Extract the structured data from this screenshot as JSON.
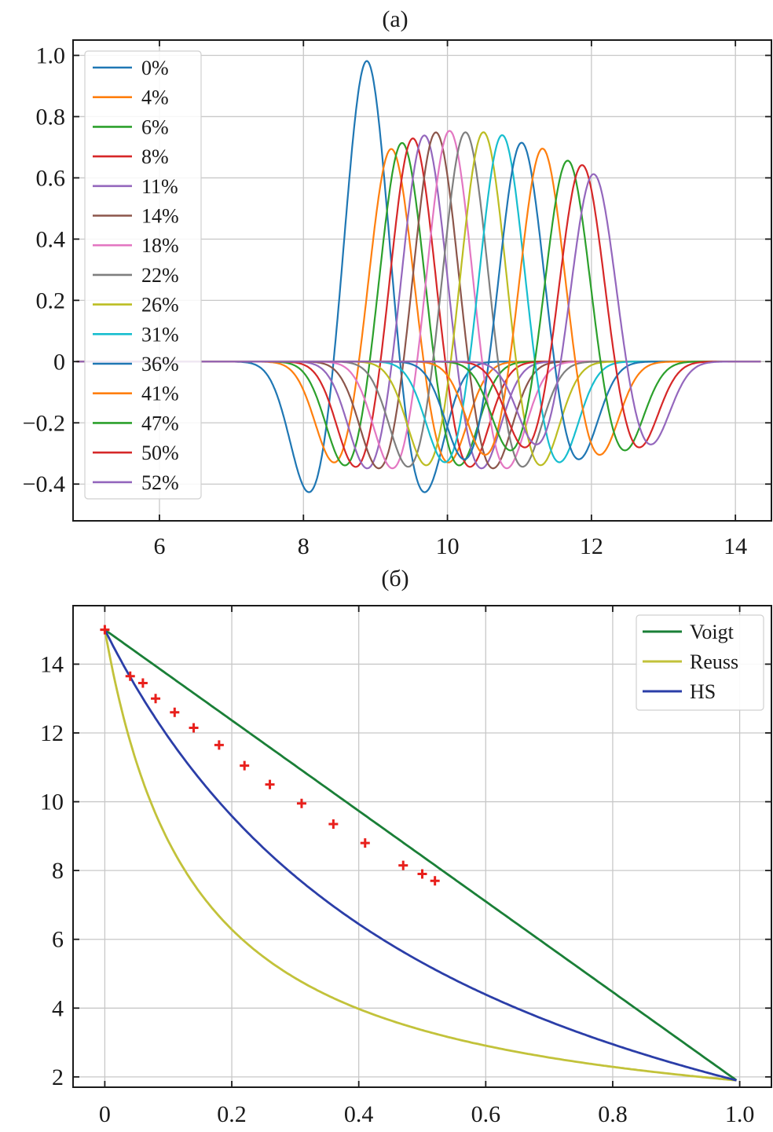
{
  "chart_data": [
    {
      "type": "line",
      "panel_label": "(a)",
      "title": "",
      "xlabel": "",
      "ylabel": "",
      "xlim": [
        4.8,
        14.5
      ],
      "ylim": [
        -0.52,
        1.05
      ],
      "xticks": [
        6,
        8,
        10,
        12,
        14
      ],
      "xtick_labels": [
        "6",
        "8",
        "10",
        "12",
        "14"
      ],
      "yticks": [
        1.0,
        0.8,
        0.6,
        0.4,
        0.2,
        0,
        -0.2,
        -0.4
      ],
      "ytick_labels": [
        "1.0",
        "0.8",
        "0.6",
        "0.4",
        "0.2",
        "0",
        "−0.2",
        "−0.4"
      ],
      "grid": true,
      "legend_position": "upper-left",
      "x_range_of_traces": [
        4.85,
        14.35
      ],
      "series": [
        {
          "name": "0%",
          "color": "#1f77b4",
          "peak_x": 8.88,
          "peak_y": 1.0,
          "trough1_x": 8.1,
          "trough1_y": -0.44,
          "trough2_x": 9.66,
          "trough2_y": -0.44
        },
        {
          "name": "4%",
          "color": "#ff7f0e",
          "peak_x": 9.22,
          "peak_y": 0.71,
          "trough1_x": 8.45,
          "trough1_y": -0.34,
          "trough2_x": 9.99,
          "trough2_y": -0.34
        },
        {
          "name": "6%",
          "color": "#2ca02c",
          "peak_x": 9.37,
          "peak_y": 0.73,
          "trough1_x": 8.6,
          "trough1_y": -0.35,
          "trough2_x": 10.14,
          "trough2_y": -0.35
        },
        {
          "name": "8%",
          "color": "#d62728",
          "peak_x": 9.52,
          "peak_y": 0.745,
          "trough1_x": 8.75,
          "trough1_y": -0.355,
          "trough2_x": 10.29,
          "trough2_y": -0.355
        },
        {
          "name": "11%",
          "color": "#9467bd",
          "peak_x": 9.68,
          "peak_y": 0.755,
          "trough1_x": 8.91,
          "trough1_y": -0.36,
          "trough2_x": 10.45,
          "trough2_y": -0.36
        },
        {
          "name": "14%",
          "color": "#8c564b",
          "peak_x": 9.84,
          "peak_y": 0.765,
          "trough1_x": 9.07,
          "trough1_y": -0.36,
          "trough2_x": 10.61,
          "trough2_y": -0.36
        },
        {
          "name": "18%",
          "color": "#e377c2",
          "peak_x": 10.03,
          "peak_y": 0.77,
          "trough1_x": 9.26,
          "trough1_y": -0.36,
          "trough2_x": 10.8,
          "trough2_y": -0.36
        },
        {
          "name": "22%",
          "color": "#7f7f7f",
          "peak_x": 10.25,
          "peak_y": 0.765,
          "trough1_x": 9.48,
          "trough1_y": -0.355,
          "trough2_x": 11.02,
          "trough2_y": -0.355
        },
        {
          "name": "26%",
          "color": "#bcbd22",
          "peak_x": 10.5,
          "peak_y": 0.765,
          "trough1_x": 9.73,
          "trough1_y": -0.35,
          "trough2_x": 11.27,
          "trough2_y": -0.35
        },
        {
          "name": "31%",
          "color": "#17becf",
          "peak_x": 10.76,
          "peak_y": 0.755,
          "trough1_x": 9.99,
          "trough1_y": -0.34,
          "trough2_x": 11.53,
          "trough2_y": -0.34
        },
        {
          "name": "36%",
          "color": "#1f77b4",
          "peak_x": 11.03,
          "peak_y": 0.73,
          "trough1_x": 10.26,
          "trough1_y": -0.33,
          "trough2_x": 11.8,
          "trough2_y": -0.33
        },
        {
          "name": "41%",
          "color": "#ff7f0e",
          "peak_x": 11.32,
          "peak_y": 0.71,
          "trough1_x": 10.55,
          "trough1_y": -0.315,
          "trough2_x": 12.09,
          "trough2_y": -0.315
        },
        {
          "name": "47%",
          "color": "#2ca02c",
          "peak_x": 11.67,
          "peak_y": 0.67,
          "trough1_x": 10.9,
          "trough1_y": -0.3,
          "trough2_x": 12.44,
          "trough2_y": -0.3
        },
        {
          "name": "50%",
          "color": "#d62728",
          "peak_x": 11.87,
          "peak_y": 0.655,
          "trough1_x": 11.1,
          "trough1_y": -0.29,
          "trough2_x": 12.64,
          "trough2_y": -0.29
        },
        {
          "name": "52%",
          "color": "#9467bd",
          "peak_x": 12.03,
          "peak_y": 0.625,
          "trough1_x": 11.26,
          "trough1_y": -0.28,
          "trough2_x": 12.8,
          "trough2_y": -0.28
        }
      ]
    },
    {
      "type": "line",
      "panel_label": "(б)",
      "title": "",
      "xlabel": "",
      "ylabel": "",
      "xlim": [
        -0.05,
        1.05
      ],
      "ylim": [
        1.7,
        15.7
      ],
      "xticks": [
        0,
        0.2,
        0.4,
        0.6,
        0.8,
        1.0
      ],
      "xtick_labels": [
        "0",
        "0.2",
        "0.4",
        "0.6",
        "0.8",
        "1.0"
      ],
      "yticks": [
        14,
        12,
        10,
        8,
        6,
        4,
        2
      ],
      "ytick_labels": [
        "14",
        "12",
        "10",
        "8",
        "6",
        "4",
        "2"
      ],
      "grid": true,
      "legend_position": "upper-right",
      "endpoints": {
        "x0": 0,
        "y0": 15.0,
        "x1": 0.995,
        "y1": 1.9
      },
      "series": [
        {
          "name": "Voigt",
          "color": "#1a7f37",
          "model": "voigt"
        },
        {
          "name": "Reuss",
          "color": "#c2c23a",
          "model": "reuss"
        },
        {
          "name": "HS",
          "color": "#2b3ea8",
          "model": "hs"
        }
      ],
      "scatter": {
        "color": "#e8201c",
        "marker": "plus",
        "x": [
          0.0,
          0.04,
          0.06,
          0.08,
          0.11,
          0.14,
          0.18,
          0.22,
          0.26,
          0.31,
          0.36,
          0.41,
          0.47,
          0.5,
          0.52
        ],
        "y": [
          15.0,
          13.65,
          13.45,
          13.0,
          12.6,
          12.15,
          11.65,
          11.05,
          10.5,
          9.95,
          9.35,
          8.8,
          8.15,
          7.9,
          7.7
        ]
      }
    }
  ]
}
